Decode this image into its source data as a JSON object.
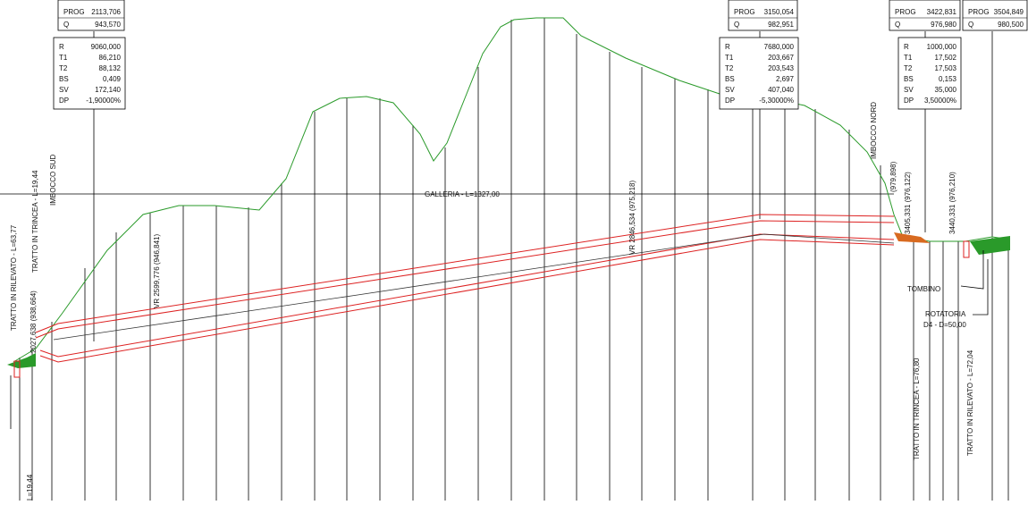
{
  "prog_boxes": [
    {
      "prog_label": "PROG",
      "prog": "2113,706",
      "q_label": "Q",
      "q": "943,570"
    },
    {
      "prog_label": "PROG",
      "prog": "3150,054",
      "q_label": "Q",
      "q": "982,951"
    },
    {
      "prog_label": "PROG",
      "prog": "3422,831",
      "q_label": "Q",
      "q": "976,980"
    },
    {
      "prog_label": "PROG",
      "prog": "3504,849",
      "q_label": "Q",
      "q": "980,500"
    }
  ],
  "curve_boxes": [
    {
      "rows": [
        [
          "R",
          "9060,000"
        ],
        [
          "T1",
          "86,210"
        ],
        [
          "T2",
          "88,132"
        ],
        [
          "BS",
          "0,409"
        ],
        [
          "SV",
          "172,140"
        ],
        [
          "DP",
          "-1,90000%"
        ]
      ]
    },
    {
      "rows": [
        [
          "R",
          "7680,000"
        ],
        [
          "T1",
          "203,667"
        ],
        [
          "T2",
          "203,543"
        ],
        [
          "BS",
          "2,697"
        ],
        [
          "SV",
          "407,040"
        ],
        [
          "DP",
          "-5,30000%"
        ]
      ]
    },
    {
      "rows": [
        [
          "R",
          "1000,000"
        ],
        [
          "T1",
          "17,502"
        ],
        [
          "T2",
          "17,503"
        ],
        [
          "BS",
          "0,153"
        ],
        [
          "SV",
          "35,000"
        ],
        [
          "DP",
          "3,50000%"
        ]
      ]
    }
  ],
  "labels": {
    "galleria": "GALLERIA - L=1327,00",
    "rilevato_sud": "TRATTO IN RILEVATO - L=63,77",
    "trincea_sud": "TRATTO IN TRINCEA - L=19,44",
    "imbocco_sud": "IMBOCCO SUD",
    "imbocco_nord": "IMBOCCO NORD",
    "tombino": "TOMBINO",
    "rotatoria": "ROTATORIA",
    "rotatoria_d": "D4 - D=50,00",
    "trincea_nord": "TRATTO IN TRINCEA - L=76,80",
    "rilevato_nord": "TRATTO IN RILEVATO - L=72,04",
    "pt_start": "2027,638 (938,664)",
    "vr1": "VR 2599,776 (946,841)",
    "vr2": "VR 2846,534 (975,218)",
    "pt_nord": "(979,898)",
    "pt_a": "3405,331 (976,122)",
    "pt_b": "3440,331 (976,210)",
    "l_bottom": "L=19,44"
  }
}
